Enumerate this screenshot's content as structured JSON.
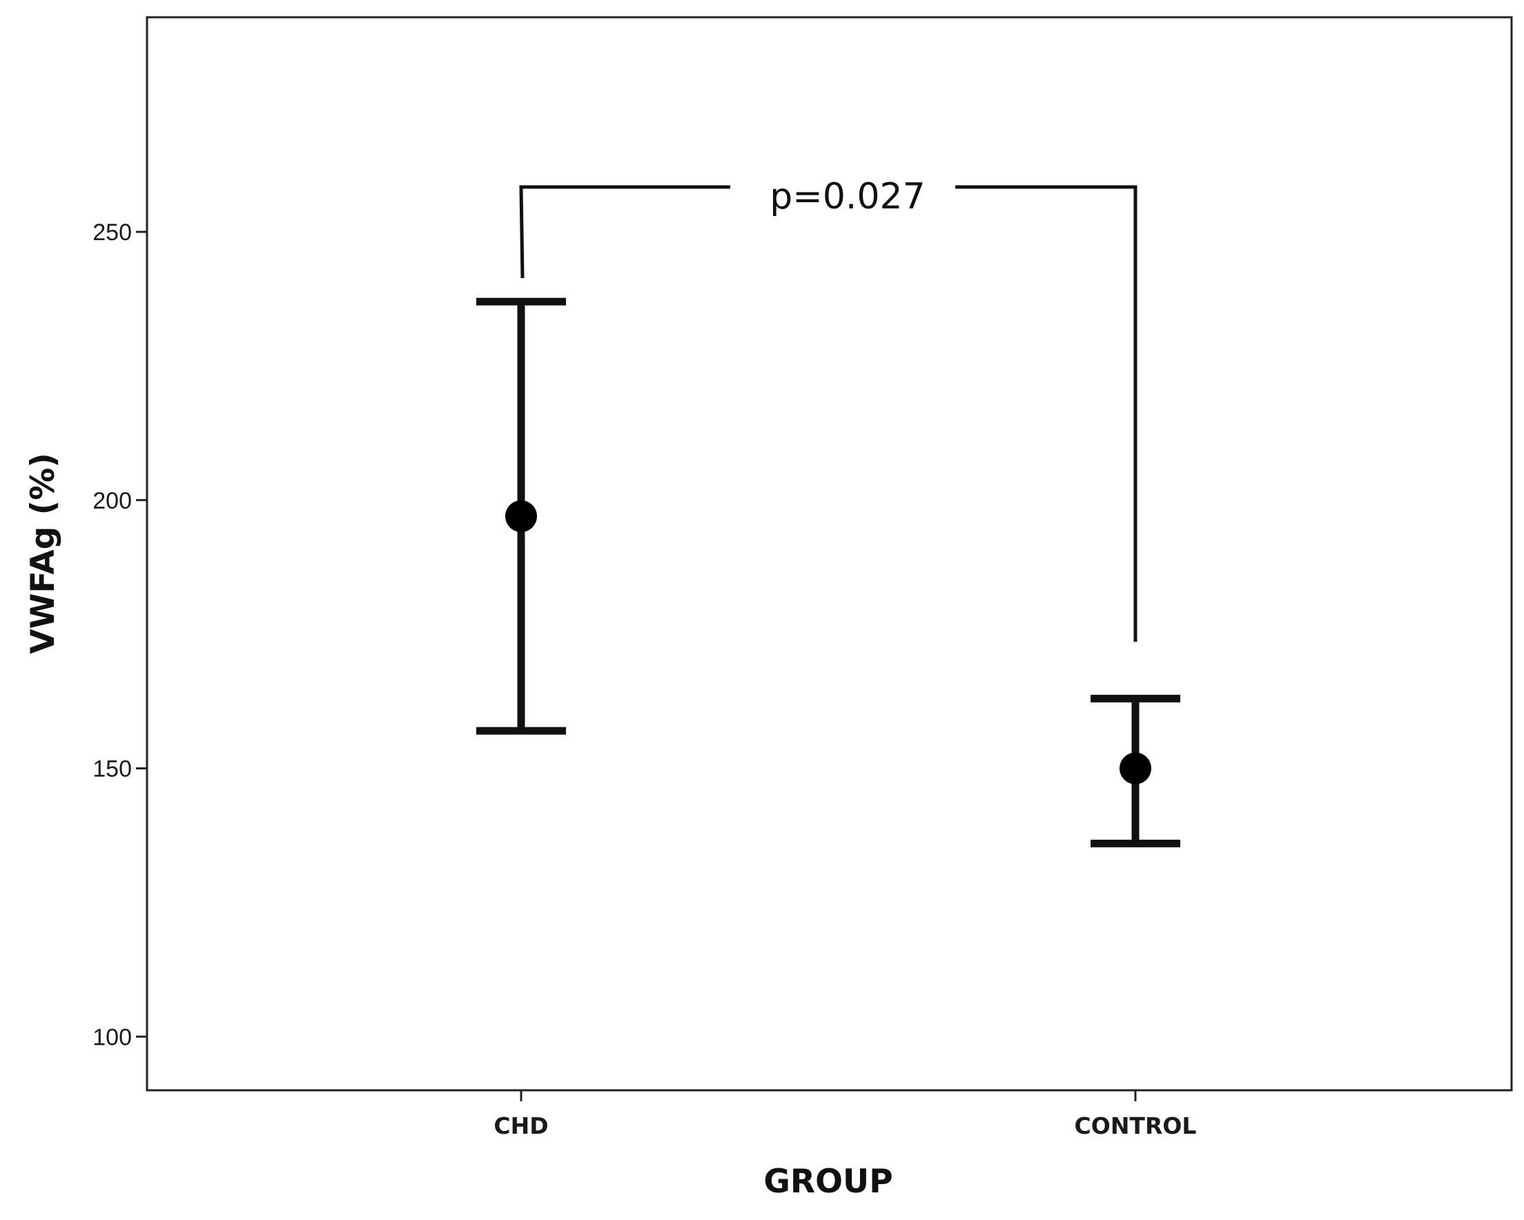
{
  "chart_data": {
    "type": "errorbar",
    "title": "",
    "xlabel": "GROUP",
    "ylabel": "VWFAg (%)",
    "categories": [
      "CHD",
      "CONTROL"
    ],
    "series": [
      {
        "points": [
          {
            "category": "CHD",
            "mean": 197,
            "lower": 157,
            "upper": 237
          },
          {
            "category": "CONTROL",
            "mean": 150,
            "lower": 136,
            "upper": 163
          }
        ]
      }
    ],
    "ylim": [
      90,
      290
    ],
    "yticks": [
      100,
      150,
      200,
      250
    ],
    "grid": false,
    "annotation": {
      "text": "p=0.027",
      "between": [
        "CHD",
        "CONTROL"
      ]
    }
  }
}
